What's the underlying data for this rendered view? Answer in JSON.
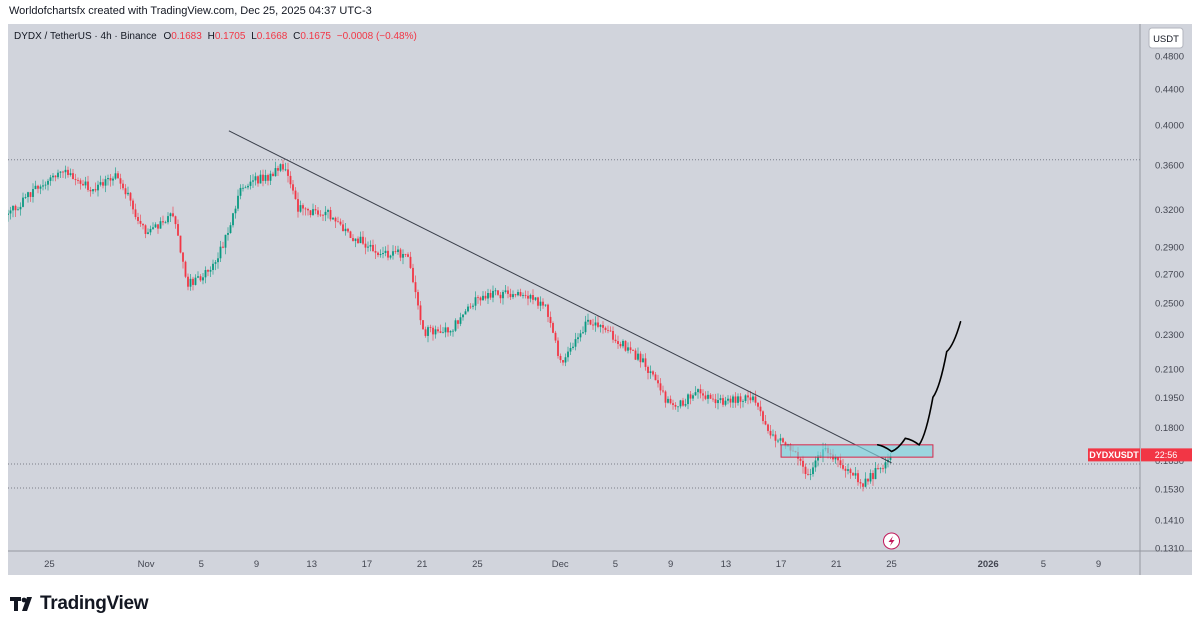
{
  "attribution": "Worldofchartsfx created with TradingView.com, Dec 25, 2025 04:37 UTC-3",
  "legend": {
    "symbol": "DYDX / TetherUS · 4h · Binance",
    "o_label": "O",
    "o_value": "0.1683",
    "h_label": "H",
    "h_value": "0.1705",
    "l_label": "L",
    "l_value": "0.1668",
    "c_label": "C",
    "c_value": "0.1675",
    "change": "−0.0008 (−0.48%)"
  },
  "currency_button": "USDT",
  "price_tag": {
    "symbol": "DYDXUSDT",
    "countdown": "22:56"
  },
  "brand": "TradingView",
  "colors": {
    "bg": "#d1d4dc",
    "up": "#089981",
    "down": "#f23645",
    "text": "#131722",
    "axis_text": "#434651",
    "price_tag": "#f23645"
  },
  "chart_data": {
    "type": "candlestick",
    "y_scale": "log",
    "y_ticks": [
      "0.4800",
      "0.4400",
      "0.4000",
      "0.3600",
      "0.3200",
      "0.2900",
      "0.2700",
      "0.2500",
      "0.2300",
      "0.2100",
      "0.1950",
      "0.1800",
      "0.1650",
      "0.1530",
      "0.1410",
      "0.1310"
    ],
    "x_ticks": [
      "25",
      "Nov",
      "5",
      "9",
      "13",
      "17",
      "21",
      "25",
      "Dec",
      "5",
      "9",
      "13",
      "17",
      "21",
      "25",
      "2026",
      "5",
      "9"
    ],
    "x_range": [
      "2025-10-22",
      "2026-01-12"
    ],
    "dotted_levels": [
      0.365,
      0.1635,
      0.1535
    ],
    "path": [
      [
        "2025-10-22",
        0.316
      ],
      [
        "2025-10-24",
        0.338
      ],
      [
        "2025-10-26",
        0.356
      ],
      [
        "2025-10-28",
        0.338
      ],
      [
        "2025-10-30",
        0.35
      ],
      [
        "2025-11-01",
        0.298
      ],
      [
        "2025-11-03",
        0.318
      ],
      [
        "2025-11-04",
        0.262
      ],
      [
        "2025-11-06",
        0.275
      ],
      [
        "2025-11-08",
        0.342
      ],
      [
        "2025-11-10",
        0.35
      ],
      [
        "2025-11-11",
        0.36
      ],
      [
        "2025-11-12",
        0.32
      ],
      [
        "2025-11-14",
        0.318
      ],
      [
        "2025-11-16",
        0.298
      ],
      [
        "2025-11-18",
        0.284
      ],
      [
        "2025-11-20",
        0.286
      ],
      [
        "2025-11-21",
        0.232
      ],
      [
        "2025-11-23",
        0.232
      ],
      [
        "2025-11-25",
        0.254
      ],
      [
        "2025-11-28",
        0.258
      ],
      [
        "2025-11-30",
        0.248
      ],
      [
        "2025-12-01",
        0.214
      ],
      [
        "2025-12-03",
        0.238
      ],
      [
        "2025-12-05",
        0.228
      ],
      [
        "2025-12-07",
        0.214
      ],
      [
        "2025-12-09",
        0.19
      ],
      [
        "2025-12-11",
        0.197
      ],
      [
        "2025-12-13",
        0.192
      ],
      [
        "2025-12-15",
        0.196
      ],
      [
        "2025-12-16",
        0.178
      ],
      [
        "2025-12-18",
        0.17
      ],
      [
        "2025-12-19",
        0.157
      ],
      [
        "2025-12-20",
        0.17
      ],
      [
        "2025-12-22",
        0.161
      ],
      [
        "2025-12-23",
        0.155
      ],
      [
        "2025-12-24",
        0.161
      ],
      [
        "2025-12-25",
        0.1675
      ]
    ],
    "trendline": [
      [
        "2025-11-07",
        0.394
      ],
      [
        "2025-12-25",
        0.164
      ]
    ],
    "zone": {
      "x": [
        "2025-12-17",
        "2025-12-28"
      ],
      "y": [
        0.1665,
        0.172
      ]
    },
    "projection": [
      [
        "2025-12-24",
        0.172
      ],
      [
        "2025-12-25",
        0.169
      ],
      [
        "2025-12-26",
        0.175
      ],
      [
        "2025-12-27",
        0.172
      ],
      [
        "2025-12-28",
        0.195
      ],
      [
        "2025-12-29",
        0.22
      ],
      [
        "2025-12-30",
        0.238
      ]
    ],
    "event_marker_date": "2025-12-25"
  }
}
